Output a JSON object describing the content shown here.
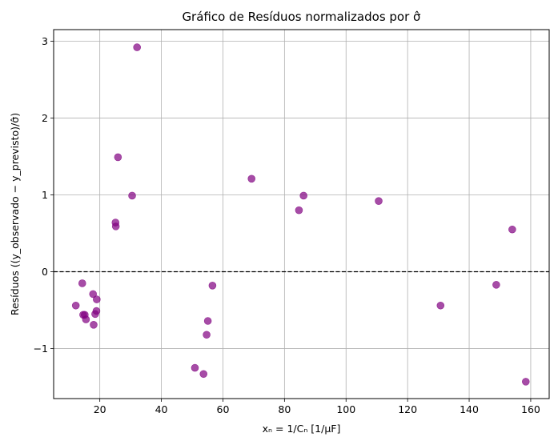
{
  "chart_data": {
    "type": "scatter",
    "title": "Gráfico de Resíduos normalizados por σ̂",
    "xlabel": "xₙ = 1/Cₙ [1/μF]",
    "ylabel": "Resíduos ((y_observado − y_previsto)/σ̂)",
    "xlim": [
      5,
      166
    ],
    "ylim": [
      -1.65,
      3.15
    ],
    "xticks": [
      20,
      40,
      60,
      80,
      100,
      120,
      140,
      160
    ],
    "yticks": [
      -1,
      0,
      1,
      2,
      3
    ],
    "xtick_labels": [
      "20",
      "40",
      "60",
      "80",
      "100",
      "120",
      "140",
      "160"
    ],
    "ytick_labels": [
      "−1",
      "0",
      "1",
      "2",
      "3"
    ],
    "grid": true,
    "reference_line_y": 0,
    "point_color": "#800080",
    "point_opacity": 0.7,
    "points": [
      {
        "x": 12.2,
        "y": -0.44
      },
      {
        "x": 14.3,
        "y": -0.15
      },
      {
        "x": 14.6,
        "y": -0.56
      },
      {
        "x": 15.1,
        "y": -0.56
      },
      {
        "x": 15.5,
        "y": -0.62
      },
      {
        "x": 17.8,
        "y": -0.29
      },
      {
        "x": 18.0,
        "y": -0.69
      },
      {
        "x": 18.5,
        "y": -0.55
      },
      {
        "x": 18.9,
        "y": -0.51
      },
      {
        "x": 19.0,
        "y": -0.36
      },
      {
        "x": 25.1,
        "y": 0.64
      },
      {
        "x": 25.2,
        "y": 0.59
      },
      {
        "x": 25.9,
        "y": 1.49
      },
      {
        "x": 30.5,
        "y": 0.99
      },
      {
        "x": 32.1,
        "y": 2.92
      },
      {
        "x": 50.9,
        "y": -1.25
      },
      {
        "x": 53.7,
        "y": -1.33
      },
      {
        "x": 54.7,
        "y": -0.82
      },
      {
        "x": 55.1,
        "y": -0.64
      },
      {
        "x": 56.6,
        "y": -0.18
      },
      {
        "x": 69.3,
        "y": 1.21
      },
      {
        "x": 84.7,
        "y": 0.8
      },
      {
        "x": 86.2,
        "y": 0.99
      },
      {
        "x": 110.6,
        "y": 0.92
      },
      {
        "x": 130.7,
        "y": -0.44
      },
      {
        "x": 148.8,
        "y": -0.17
      },
      {
        "x": 154.0,
        "y": 0.55
      },
      {
        "x": 158.4,
        "y": -1.43
      }
    ]
  }
}
